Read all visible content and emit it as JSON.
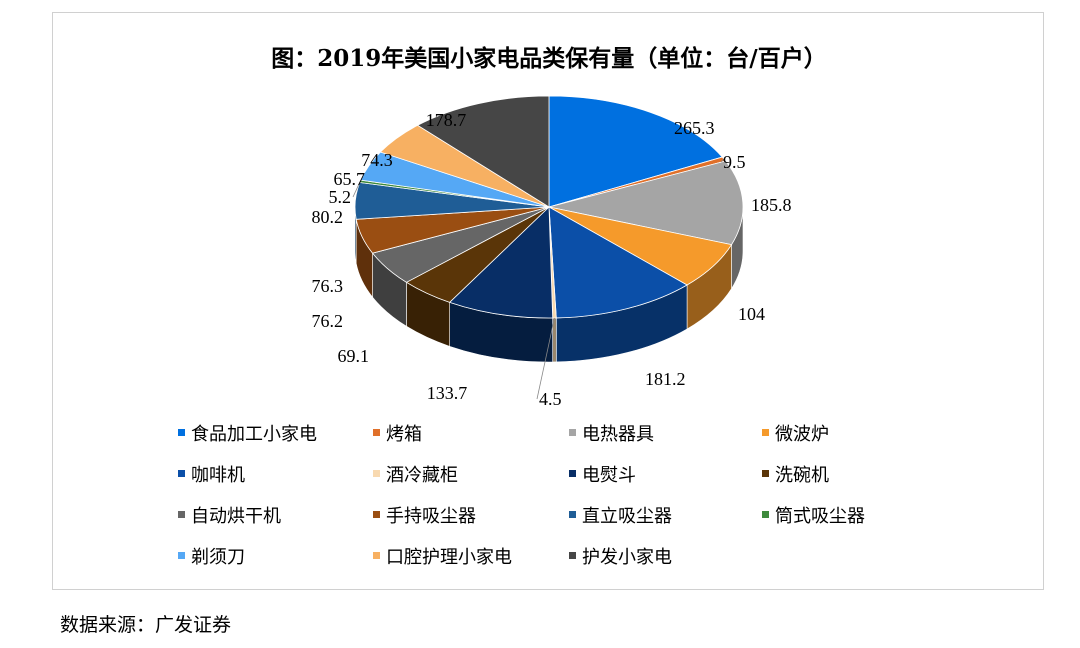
{
  "title": "图：2019年美国小家电品类保有量（单位：台/百户）",
  "source": "数据来源：广发证券",
  "chart_data": {
    "type": "pie",
    "title": "图：2019年美国小家电品类保有量（单位：台/百户）",
    "unit": "台/百户",
    "legend_position": "bottom",
    "slices": [
      {
        "name": "食品加工小家电",
        "value": 265.3,
        "label": "265.3",
        "color": "#0070e0"
      },
      {
        "name": "烤箱",
        "value": 9.5,
        "label": "9.5",
        "color": "#e0702a"
      },
      {
        "name": "电热器具",
        "value": 185.8,
        "label": "185.8",
        "color": "#a5a5a5"
      },
      {
        "name": "微波炉",
        "value": 104,
        "label": "104",
        "color": "#f59a2b"
      },
      {
        "name": "咖啡机",
        "value": 181.2,
        "label": "181.2",
        "color": "#0b4fa8"
      },
      {
        "name": "酒冷藏柜",
        "value": 4.5,
        "label": "4.5",
        "color": "#f8d9b0"
      },
      {
        "name": "电熨斗",
        "value": 133.7,
        "label": "133.7",
        "color": "#082e66"
      },
      {
        "name": "洗碗机",
        "value": 69.1,
        "label": "69.1",
        "color": "#5a3508"
      },
      {
        "name": "自动烘干机",
        "value": 76.2,
        "label": "76.2",
        "color": "#666666"
      },
      {
        "name": "手持吸尘器",
        "value": 76.3,
        "label": "76.3",
        "color": "#9a4e12"
      },
      {
        "name": "直立吸尘器",
        "value": 80.2,
        "label": "80.2",
        "color": "#1f5d96"
      },
      {
        "name": "筒式吸尘器",
        "value": 5.2,
        "label": "5.2",
        "color": "#3e8a3c"
      },
      {
        "name": "剃须刀",
        "value": 65.7,
        "label": "65.7",
        "color": "#55a8f5"
      },
      {
        "name": "口腔护理小家电",
        "value": 74.3,
        "label": "74.3",
        "color": "#f7b062"
      },
      {
        "name": "护发小家电",
        "value": 178.7,
        "label": "178.7",
        "color": "#464646"
      }
    ]
  }
}
